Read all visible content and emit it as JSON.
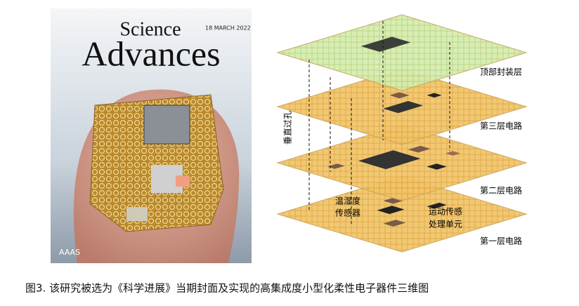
{
  "cover": {
    "title_line1": "Science",
    "title_line2": "Advances",
    "date": "18 MARCH 2022",
    "publisher": "AAAS"
  },
  "diagram": {
    "layers": [
      "顶部封装层",
      "第三层电路",
      "第二层电路",
      "第一层电路"
    ],
    "via_label": "垂直过孔",
    "sensors": [
      [
        "温湿度",
        "传感器"
      ],
      [
        "运动传感",
        "处理单元"
      ]
    ]
  },
  "caption": "图3. 该研究被选为《科学进展》当期封面及实现的高集成度小型化柔性电子器件三维图"
}
